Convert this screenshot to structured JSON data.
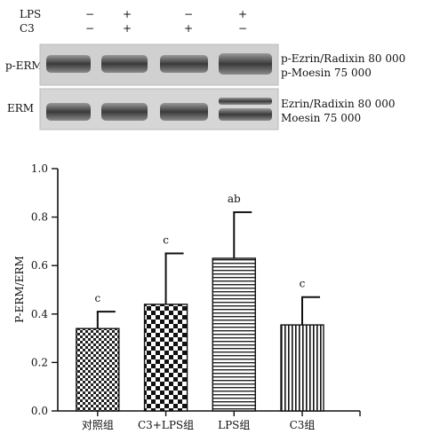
{
  "blot": {
    "conditions": [
      {
        "label": "LPS",
        "values": [
          "−",
          "+",
          "−",
          "+"
        ]
      },
      {
        "label": "C3",
        "values": [
          "−",
          "+",
          "+",
          "−"
        ]
      }
    ],
    "panels": [
      {
        "label": "p-ERM",
        "bands_right": [
          "p-Ezrin/Radixin 80 000",
          "p-Moesin 75 000"
        ]
      },
      {
        "label": "ERM",
        "bands_right": [
          "Ezrin/Radixin 80 000",
          "Moesin 75 000"
        ]
      }
    ]
  },
  "chart_data": {
    "type": "bar",
    "categories": [
      "对照组",
      "C3+LPS组",
      "LPS组",
      "C3组"
    ],
    "values": [
      0.34,
      0.44,
      0.63,
      0.355
    ],
    "errors": [
      0.07,
      0.21,
      0.19,
      0.115
    ],
    "annotations": [
      "c",
      "c",
      "ab",
      "c"
    ],
    "patterns": [
      "checker-small",
      "checker-large",
      "horizontal-lines",
      "vertical-lines"
    ],
    "ylabel": "P-ERM/ERM",
    "ylim": [
      0,
      1.0
    ],
    "yticks": [
      "0.0",
      "0.2",
      "0.4",
      "0.6",
      "0.8",
      "1.0"
    ],
    "grid": false
  }
}
